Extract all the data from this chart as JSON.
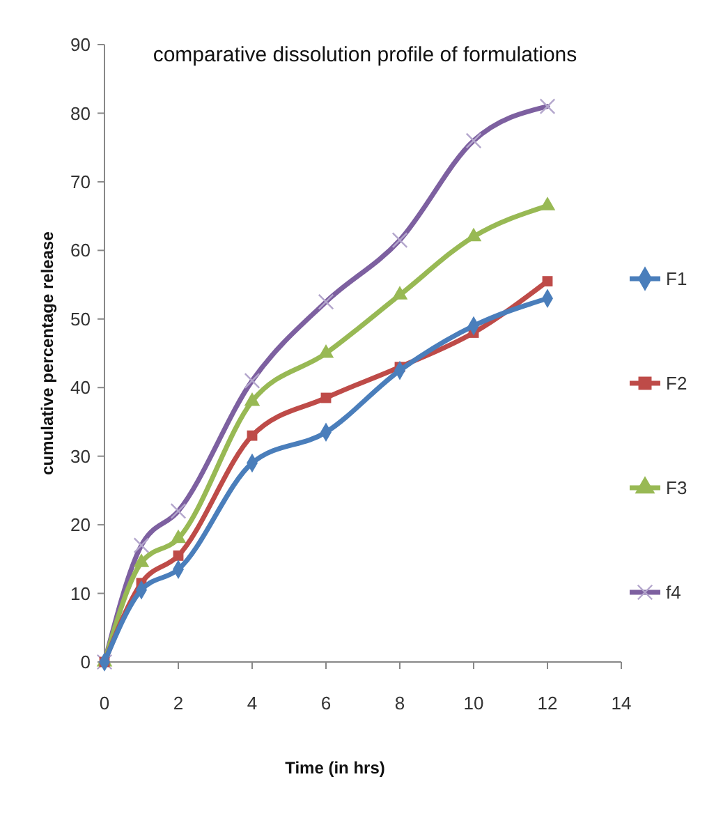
{
  "chart_data": {
    "type": "line",
    "title": "comparative dissolution profile of formulations",
    "xlabel": "Time (in hrs)",
    "ylabel": "cumulative percentage release",
    "x": [
      0,
      1,
      2,
      4,
      6,
      8,
      10,
      12
    ],
    "xlim": [
      0,
      14
    ],
    "xticks": [
      0,
      2,
      4,
      6,
      8,
      10,
      12,
      14
    ],
    "ylim": [
      0,
      90
    ],
    "yticks": [
      0,
      10,
      20,
      30,
      40,
      50,
      60,
      70,
      80,
      90
    ],
    "grid": false,
    "legend": "right",
    "series": [
      {
        "name": "F1",
        "color": "#4a7ebb",
        "marker": "diamond",
        "values": [
          0,
          10.5,
          13.5,
          29,
          33.5,
          42.5,
          49,
          53
        ]
      },
      {
        "name": "F2",
        "color": "#be4b48",
        "marker": "square",
        "values": [
          0,
          11.5,
          15.5,
          33,
          38.5,
          43,
          48,
          55.5
        ]
      },
      {
        "name": "F3",
        "color": "#98b954",
        "marker": "triangle",
        "values": [
          0,
          14.5,
          18,
          38,
          45,
          53.5,
          62,
          66.5
        ]
      },
      {
        "name": "f4",
        "color": "#7d60a0",
        "marker": "cross",
        "values": [
          0,
          17,
          22,
          41,
          52.5,
          61.5,
          76,
          81
        ]
      }
    ]
  }
}
